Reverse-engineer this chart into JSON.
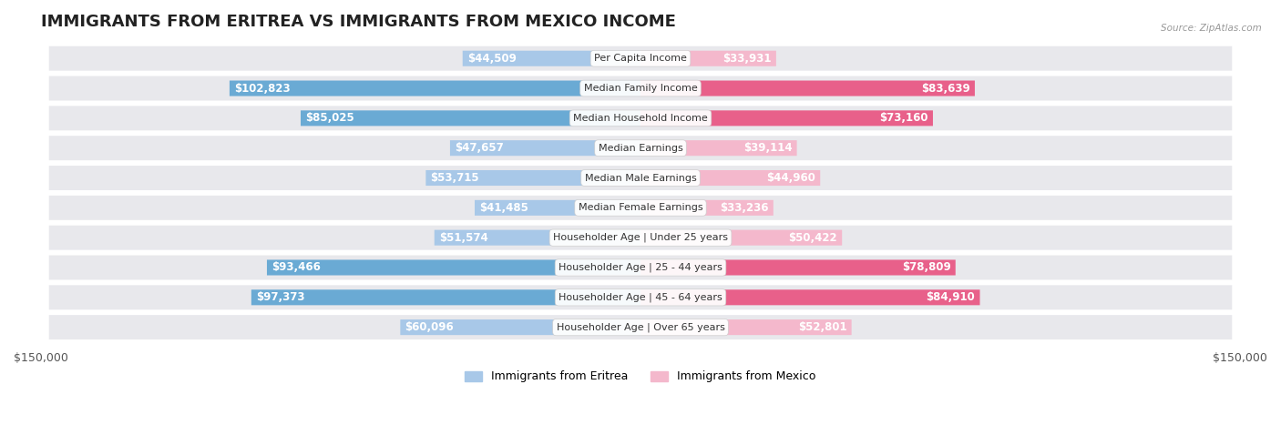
{
  "title": "IMMIGRANTS FROM ERITREA VS IMMIGRANTS FROM MEXICO INCOME",
  "source": "Source: ZipAtlas.com",
  "categories": [
    "Per Capita Income",
    "Median Family Income",
    "Median Household Income",
    "Median Earnings",
    "Median Male Earnings",
    "Median Female Earnings",
    "Householder Age | Under 25 years",
    "Householder Age | 25 - 44 years",
    "Householder Age | 45 - 64 years",
    "Householder Age | Over 65 years"
  ],
  "eritrea_values": [
    44509,
    102823,
    85025,
    47657,
    53715,
    41485,
    51574,
    93466,
    97373,
    60096
  ],
  "mexico_values": [
    33931,
    83639,
    73160,
    39114,
    44960,
    33236,
    50422,
    78809,
    84910,
    52801
  ],
  "eritrea_labels": [
    "$44,509",
    "$102,823",
    "$85,025",
    "$47,657",
    "$53,715",
    "$41,485",
    "$51,574",
    "$93,466",
    "$97,373",
    "$60,096"
  ],
  "mexico_labels": [
    "$33,931",
    "$83,639",
    "$73,160",
    "$39,114",
    "$44,960",
    "$33,236",
    "$50,422",
    "$78,809",
    "$84,910",
    "$52,801"
  ],
  "eritrea_color_light": "#a8c8e8",
  "eritrea_color_dark": "#6aaad4",
  "mexico_color_light": "#f4b8cc",
  "mexico_color_dark": "#e8608a",
  "eritrea_thresh": 65000,
  "mexico_thresh": 65000,
  "max_value": 150000,
  "xlabel_left": "$150,000",
  "xlabel_right": "$150,000",
  "legend_eritrea": "Immigrants from Eritrea",
  "legend_mexico": "Immigrants from Mexico",
  "row_bg_color": "#e8e8ec",
  "row_bg_inner": "#f5f5f8",
  "title_fontsize": 13,
  "label_fontsize": 8.5,
  "category_fontsize": 8.0
}
